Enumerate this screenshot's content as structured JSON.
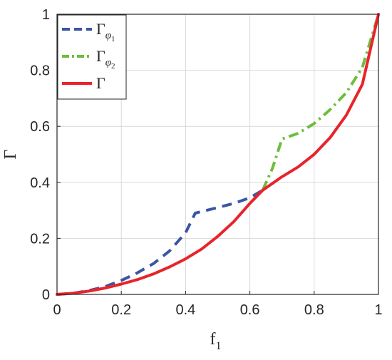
{
  "chart_data": {
    "type": "line",
    "xlabel_main": "f",
    "xlabel_sub": "1",
    "ylabel": "Γ",
    "xlim": [
      0,
      1
    ],
    "ylim": [
      0,
      1
    ],
    "xticks": [
      "0",
      "0.2",
      "0.4",
      "0.6",
      "0.8",
      "1"
    ],
    "yticks": [
      "0",
      "0.2",
      "0.4",
      "0.6",
      "0.8",
      "1"
    ],
    "grid": true,
    "legend_position": "top-left",
    "series": [
      {
        "legend_main": "Γ",
        "legend_sub": "φ",
        "legend_subsub": "1",
        "color": "#3a55a4",
        "style": "dashed",
        "x": [
          0,
          0.05,
          0.1,
          0.15,
          0.2,
          0.25,
          0.3,
          0.35,
          0.4,
          0.43,
          0.5,
          0.55,
          0.6,
          0.64
        ],
        "y": [
          0,
          0.004,
          0.014,
          0.028,
          0.05,
          0.077,
          0.11,
          0.155,
          0.22,
          0.29,
          0.31,
          0.325,
          0.345,
          0.372
        ]
      },
      {
        "legend_main": "Γ",
        "legend_sub": "φ",
        "legend_subsub": "2",
        "color": "#6dbe3c",
        "style": "dashdot",
        "x": [
          0.64,
          0.67,
          0.7,
          0.75,
          0.8,
          0.85,
          0.9,
          0.95,
          1.0
        ],
        "y": [
          0.372,
          0.45,
          0.555,
          0.575,
          0.61,
          0.66,
          0.72,
          0.81,
          1.0
        ]
      },
      {
        "legend_main": "Γ",
        "color": "#e8242b",
        "style": "solid",
        "x": [
          0,
          0.05,
          0.1,
          0.15,
          0.2,
          0.25,
          0.3,
          0.35,
          0.4,
          0.45,
          0.5,
          0.55,
          0.6,
          0.64,
          0.7,
          0.75,
          0.8,
          0.85,
          0.9,
          0.95,
          1.0
        ],
        "y": [
          0,
          0.004,
          0.012,
          0.023,
          0.037,
          0.053,
          0.073,
          0.098,
          0.127,
          0.162,
          0.207,
          0.26,
          0.325,
          0.372,
          0.42,
          0.455,
          0.5,
          0.56,
          0.64,
          0.75,
          1.0
        ]
      }
    ]
  }
}
